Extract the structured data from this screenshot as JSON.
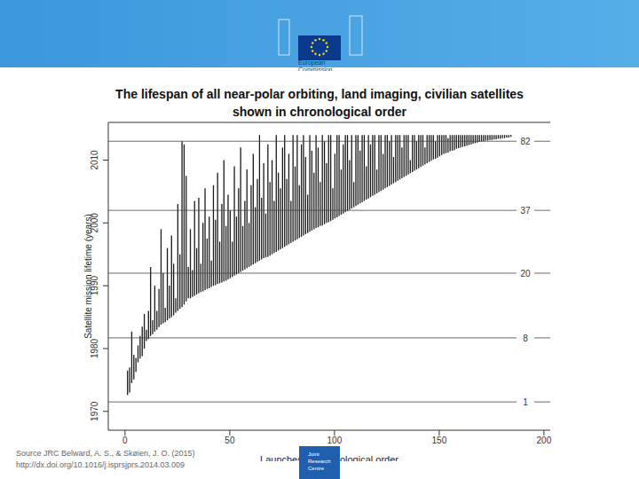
{
  "header": {
    "logo_text": [
      "European",
      "Commission"
    ]
  },
  "footer": {
    "source": [
      "Source JRC Belward, A. S., & Skøien, J. O. (2015)",
      "http://dx.doi.org/10.1016/j.isprsjprs.2014.03.009"
    ],
    "logo_text": [
      "Joint",
      "Research",
      "Centre"
    ]
  },
  "chart_data": {
    "type": "range_bar",
    "title": [
      "The lifespan of all near-polar orbiting, land imaging, civilian satellites",
      "shown in chronological order"
    ],
    "x_label": "Launches in chronological order",
    "y_label": "Satellite mission lifetime (years)",
    "color": "#1a1a1a",
    "grid": false,
    "xlim": [
      -8,
      203
    ],
    "xticks": [
      0,
      50,
      100,
      150,
      200
    ],
    "ylim": [
      1967,
      2016
    ],
    "yticks": [
      1970,
      1980,
      1990,
      2000,
      2010
    ],
    "x": [
      1,
      2,
      3,
      4,
      5,
      6,
      7,
      8,
      9,
      10,
      11,
      12,
      13,
      14,
      15,
      16,
      17,
      18,
      19,
      20,
      21,
      22,
      23,
      24,
      25,
      26,
      27,
      28,
      29,
      30,
      31,
      32,
      33,
      34,
      35,
      36,
      37,
      38,
      39,
      40,
      41,
      42,
      43,
      44,
      45,
      46,
      47,
      48,
      49,
      50,
      51,
      52,
      53,
      54,
      55,
      56,
      57,
      58,
      59,
      60,
      61,
      62,
      63,
      64,
      65,
      66,
      67,
      68,
      69,
      70,
      71,
      72,
      73,
      74,
      75,
      76,
      77,
      78,
      79,
      80,
      81,
      82,
      83,
      84,
      85,
      86,
      87,
      88,
      89,
      90,
      91,
      92,
      93,
      94,
      95,
      96,
      97,
      98,
      99,
      100,
      101,
      102,
      103,
      104,
      105,
      106,
      107,
      108,
      109,
      110,
      111,
      112,
      113,
      114,
      115,
      116,
      117,
      118,
      119,
      120,
      121,
      122,
      123,
      124,
      125,
      126,
      127,
      128,
      129,
      130,
      131,
      132,
      133,
      134,
      135,
      136,
      137,
      138,
      139,
      140,
      141,
      142,
      143,
      144,
      145,
      146,
      147,
      148,
      149,
      150,
      151,
      152,
      153,
      154,
      155,
      156,
      157,
      158,
      159,
      160,
      161,
      162,
      163,
      164,
      165,
      166,
      167,
      168,
      169,
      170,
      171,
      172,
      173,
      174,
      175,
      176,
      177,
      178,
      179,
      180,
      181,
      182,
      183,
      184,
      185
    ],
    "launch": [
      1972.6,
      1973.0,
      1974.5,
      1975.1,
      1976.3,
      1977.8,
      1978.4,
      1978.8,
      1980.0,
      1981.2,
      1981.5,
      1982.0,
      1982.3,
      1982.7,
      1983.0,
      1983.4,
      1983.8,
      1984.0,
      1984.2,
      1984.5,
      1984.8,
      1985.0,
      1985.3,
      1985.7,
      1986.0,
      1986.3,
      1986.6,
      1987.0,
      1987.5,
      1988.0,
      1988.0,
      1988.2,
      1988.4,
      1988.6,
      1988.8,
      1989.0,
      1989.1,
      1989.3,
      1989.5,
      1989.6,
      1989.8,
      1990.0,
      1990.1,
      1990.3,
      1990.4,
      1990.5,
      1990.7,
      1990.8,
      1991.0,
      1991.2,
      1991.4,
      1991.6,
      1991.8,
      1992.0,
      1992.2,
      1992.4,
      1992.6,
      1992.8,
      1993.0,
      1993.2,
      1993.4,
      1993.6,
      1993.8,
      1994.0,
      1994.2,
      1994.4,
      1994.5,
      1994.6,
      1994.8,
      1995.0,
      1995.2,
      1995.4,
      1995.6,
      1995.8,
      1996.0,
      1996.2,
      1996.4,
      1996.6,
      1996.8,
      1997.0,
      1997.2,
      1997.4,
      1997.6,
      1997.8,
      1998.0,
      1998.2,
      1998.4,
      1998.6,
      1998.8,
      1999.0,
      1999.2,
      1999.3,
      1999.5,
      1999.6,
      1999.8,
      2000.0,
      2000.1,
      2000.3,
      2000.5,
      2000.7,
      2000.9,
      2001.1,
      2001.3,
      2001.5,
      2001.7,
      2001.9,
      2002.1,
      2002.3,
      2002.5,
      2002.7,
      2002.9,
      2003.1,
      2003.3,
      2003.5,
      2003.7,
      2003.9,
      2004.1,
      2004.3,
      2004.5,
      2004.7,
      2004.9,
      2005.1,
      2005.3,
      2005.5,
      2005.7,
      2005.9,
      2006.1,
      2006.3,
      2006.5,
      2006.7,
      2006.9,
      2007.1,
      2007.3,
      2007.5,
      2007.7,
      2007.9,
      2008.1,
      2008.3,
      2008.5,
      2008.7,
      2008.9,
      2009.1,
      2009.3,
      2009.5,
      2009.7,
      2009.9,
      2010.1,
      2010.2,
      2010.4,
      2010.6,
      2010.8,
      2011.0,
      2011.1,
      2011.2,
      2011.4,
      2011.5,
      2011.6,
      2011.8,
      2011.9,
      2012.0,
      2012.1,
      2012.2,
      2012.3,
      2012.4,
      2012.5,
      2012.6,
      2012.7,
      2012.8,
      2012.9,
      2013.0,
      2013.0,
      2013.1,
      2013.1,
      2013.2,
      2013.2,
      2013.3,
      2013.3,
      2013.4,
      2013.4,
      2013.5,
      2013.5,
      2013.6,
      2013.6,
      2013.7,
      2013.7
    ],
    "end": [
      1976.5,
      1977.0,
      1982.7,
      1979.0,
      1978.5,
      1980.5,
      1982.0,
      1983.5,
      1985.5,
      1983.0,
      1986.0,
      1993.0,
      1984.5,
      1990.0,
      1986.0,
      1989.5,
      1999.0,
      1992.0,
      1986.5,
      1996.0,
      1990.0,
      1998.0,
      1993.5,
      1988.0,
      2003.0,
      1995.0,
      2013.0,
      2012.5,
      2007.5,
      1993.0,
      1999.0,
      1992.5,
      2003.5,
      1996.0,
      2004.0,
      1993.5,
      2000.0,
      2005.5,
      1997.5,
      2001.0,
      1994.0,
      2006.0,
      2000.5,
      2008.0,
      1997.0,
      2003.0,
      2010.0,
      1999.5,
      2004.5,
      2002.0,
      1997.0,
      2009.0,
      2001.0,
      2005.5,
      2012.0,
      1999.5,
      2003.5,
      2008.5,
      2000.0,
      2006.0,
      2011.0,
      2002.5,
      2007.0,
      2014.0,
      2004.0,
      2009.5,
      2001.5,
      2012.5,
      2006.5,
      2010.0,
      2003.5,
      2014.0,
      2008.0,
      2005.5,
      2012.0,
      2014.0,
      2007.0,
      2011.0,
      2003.5,
      2014.0,
      2009.0,
      2014.0,
      2006.0,
      2012.5,
      2014.0,
      2010.5,
      2004.5,
      2014.0,
      2011.5,
      2008.0,
      2014.0,
      2012.0,
      2006.5,
      2014.0,
      2013.0,
      2009.5,
      2014.0,
      2014.0,
      2005.5,
      2011.0,
      2014.0,
      2014.0,
      2008.5,
      2012.5,
      2014.0,
      2014.0,
      2010.0,
      2014.0,
      2006.5,
      2014.0,
      2014.0,
      2011.5,
      2014.0,
      2014.0,
      2009.0,
      2014.0,
      2012.5,
      2014.0,
      2014.0,
      2008.5,
      2014.0,
      2014.0,
      2011.0,
      2014.0,
      2014.0,
      2013.0,
      2014.0,
      2010.5,
      2014.0,
      2014.0,
      2014.0,
      2012.0,
      2014.0,
      2014.0,
      2014.0,
      2010.0,
      2014.0,
      2014.0,
      2013.0,
      2014.0,
      2014.0,
      2014.0,
      2012.0,
      2014.0,
      2014.0,
      2014.0,
      2014.0,
      2013.0,
      2014.0,
      2014.0,
      2014.0,
      2014.0,
      2014.0,
      2013.5,
      2014.0,
      2014.0,
      2014.0,
      2014.0,
      2014.0,
      2014.0,
      2014.0,
      2014.0,
      2014.0,
      2014.0,
      2014.0,
      2014.0,
      2014.0,
      2014.0,
      2014.0,
      2014.0,
      2014.0,
      2014.0,
      2014.0,
      2014.0,
      2014.0,
      2014.0,
      2014.0,
      2014.0,
      2014.0,
      2014.0,
      2014.0,
      2014.0,
      2014.0,
      2014.0
    ],
    "annotations": [
      {
        "year": 2013,
        "count": 82
      },
      {
        "year": 2002,
        "count": 37
      },
      {
        "year": 1992,
        "count": 20
      },
      {
        "year": 1981.7,
        "count": 8
      },
      {
        "year": 1971.5,
        "count": 1
      }
    ]
  }
}
